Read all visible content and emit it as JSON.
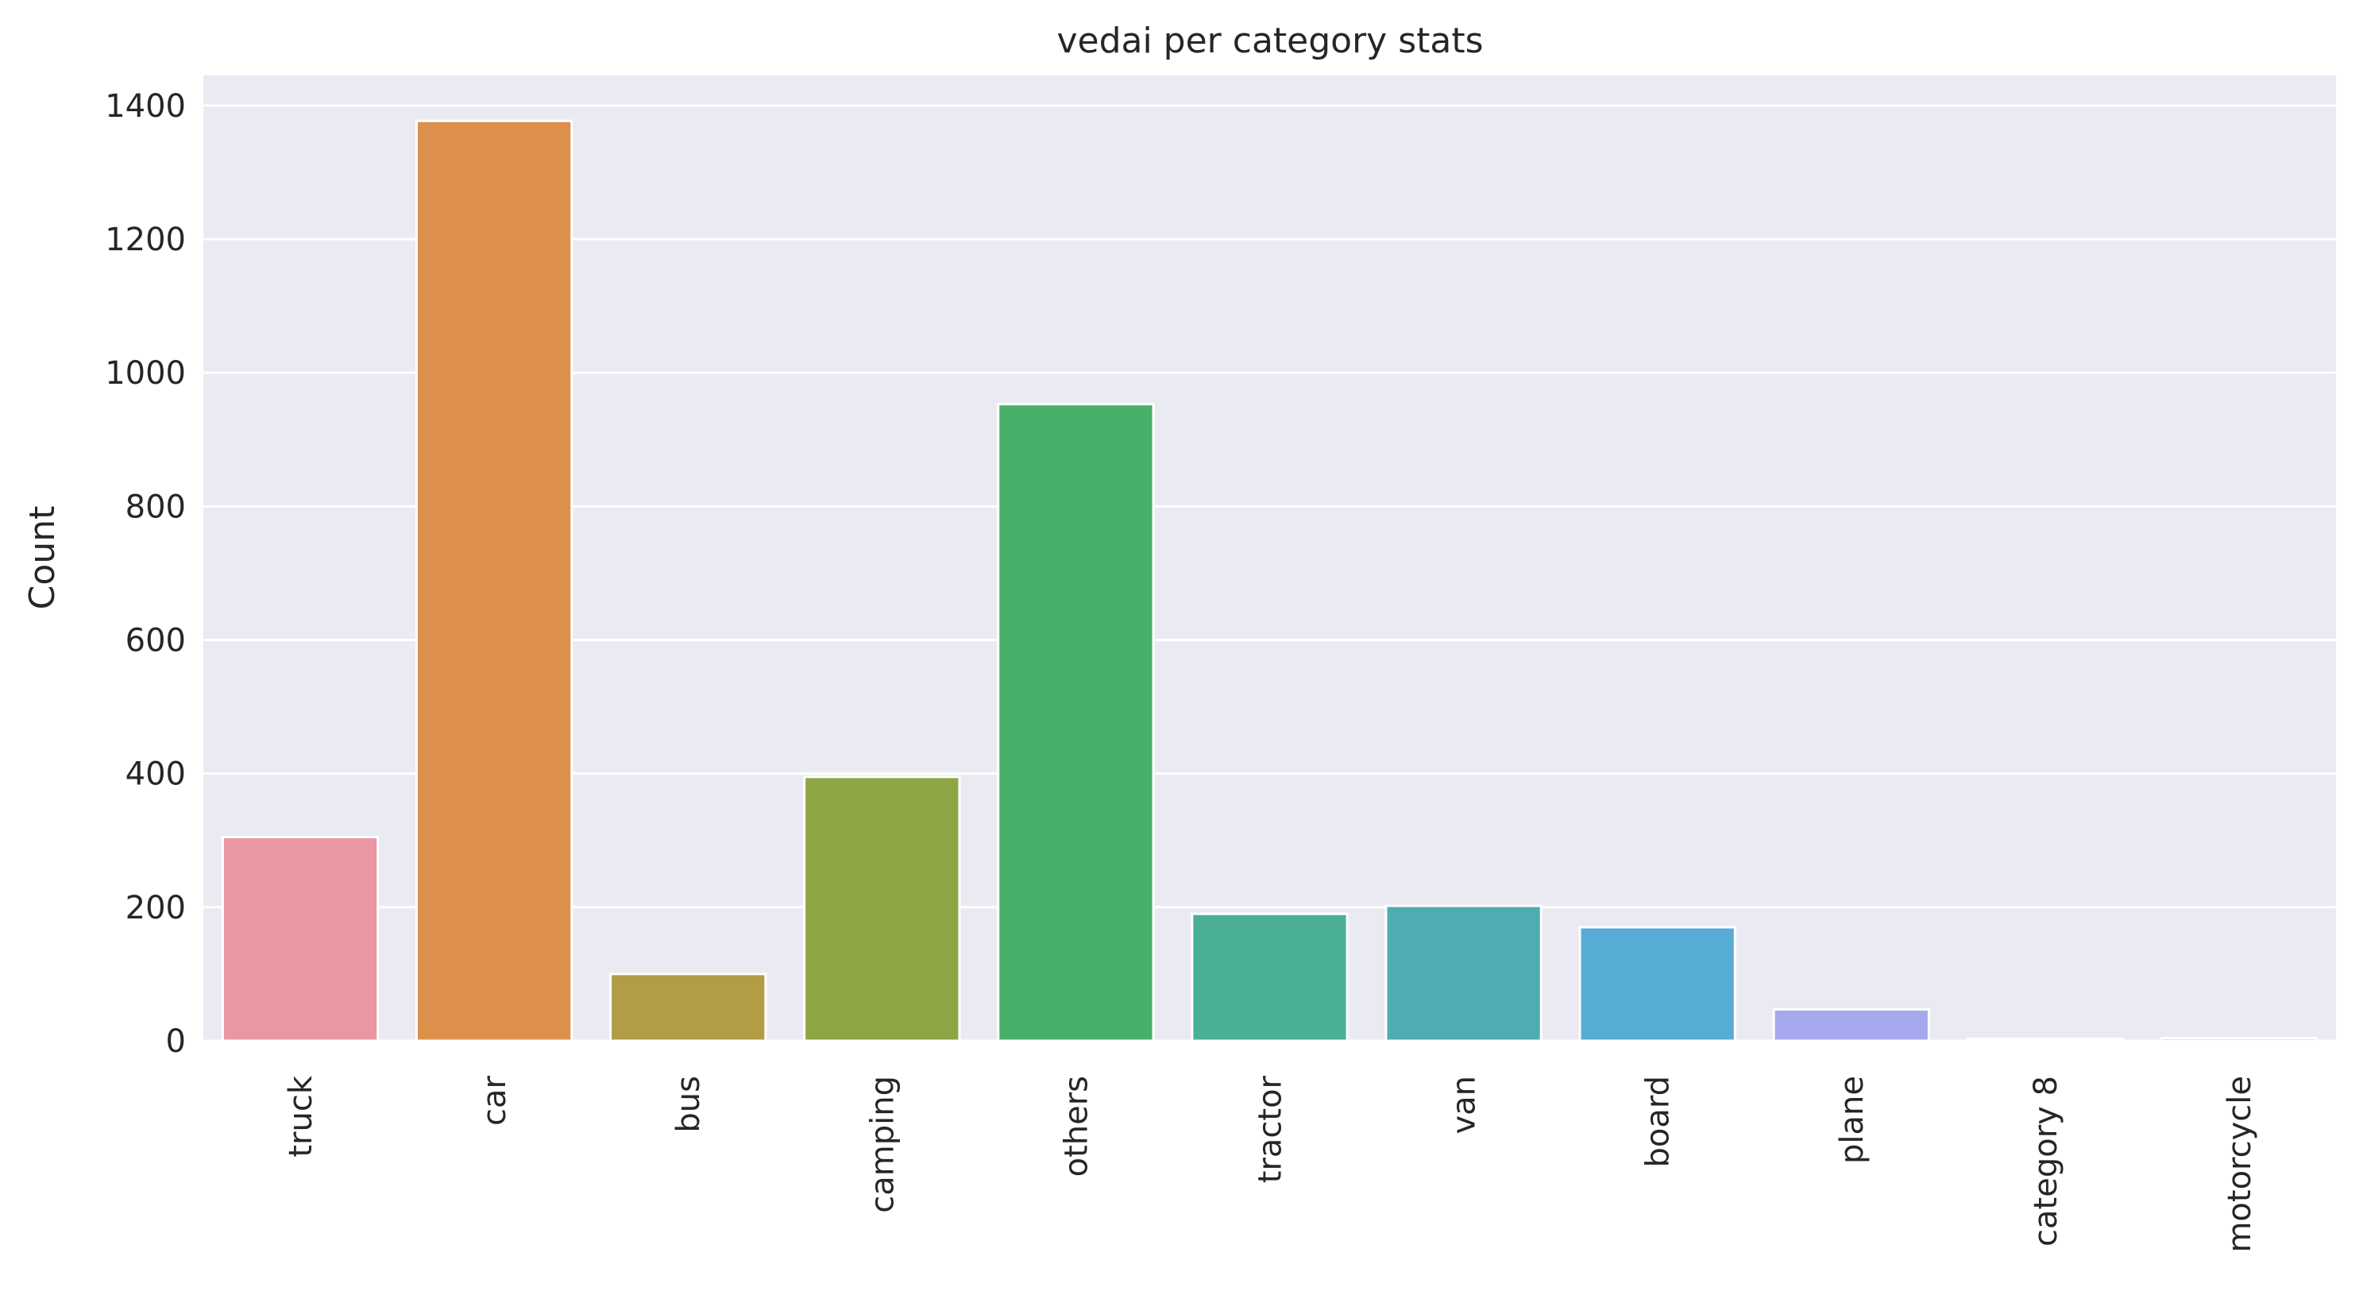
{
  "chart_data": {
    "type": "bar",
    "title": "vedai per category stats",
    "xlabel": "",
    "ylabel": "Count",
    "categories": [
      "truck",
      "car",
      "bus",
      "camping",
      "others",
      "tractor",
      "van",
      "board",
      "plane",
      "category 8",
      "motorcycle"
    ],
    "values": [
      305,
      1377,
      100,
      395,
      953,
      190,
      202,
      170,
      47,
      3,
      4
    ],
    "yticks": [
      0,
      200,
      400,
      600,
      800,
      1000,
      1200,
      1400
    ],
    "ylim": [
      0,
      1445
    ],
    "grid": true,
    "colors": [
      "#ea96a3",
      "#dd904b",
      "#b29c46",
      "#8ea545",
      "#48af69",
      "#4baf98",
      "#4eacb2",
      "#56acd4",
      "#a7a9ee",
      "#e0a2f3",
      "#e79cc9"
    ],
    "background": "#eaeaf2"
  }
}
